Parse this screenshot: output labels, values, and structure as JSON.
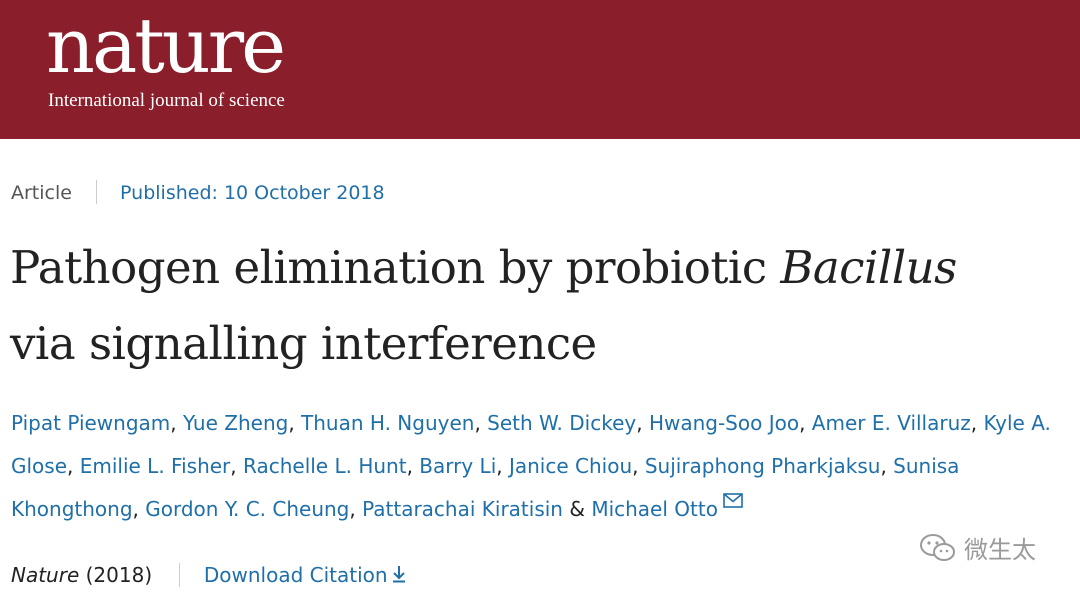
{
  "header": {
    "logo_text": "nature",
    "tagline": "International journal of science",
    "background_color": "#8b1e2b"
  },
  "article": {
    "type_label": "Article",
    "published_label": "Published: 10 October 2018",
    "title_line1_prefix": "Pathogen elimination by probiotic",
    "title_line1_italic": "Bacillus",
    "title_line2": "via signalling interference",
    "authors": [
      "Pipat Piewngam",
      "Yue Zheng",
      "Thuan H. Nguyen",
      "Seth W. Dickey",
      "Hwang-Soo Joo",
      "Amer E. Villaruz",
      "Kyle A. Glose",
      "Emilie L. Fisher",
      "Rachelle L. Hunt",
      "Barry Li",
      "Janice Chiou",
      "Sujiraphong Pharkjaksu",
      "Sunisa Khongthong",
      "Gordon Y. C. Cheung",
      "Pattarachai Kiratisin",
      "Michael Otto"
    ],
    "author_separator": ",",
    "last_author_joiner": "&",
    "contact_icon": "envelope-icon",
    "journal_name": "Nature",
    "journal_year": "(2018)",
    "download_label": "Download Citation",
    "download_icon": "download-arrow-icon",
    "link_color": "#1f6fa8"
  },
  "watermark": {
    "text": "微生太",
    "icon": "wechat-icon"
  }
}
